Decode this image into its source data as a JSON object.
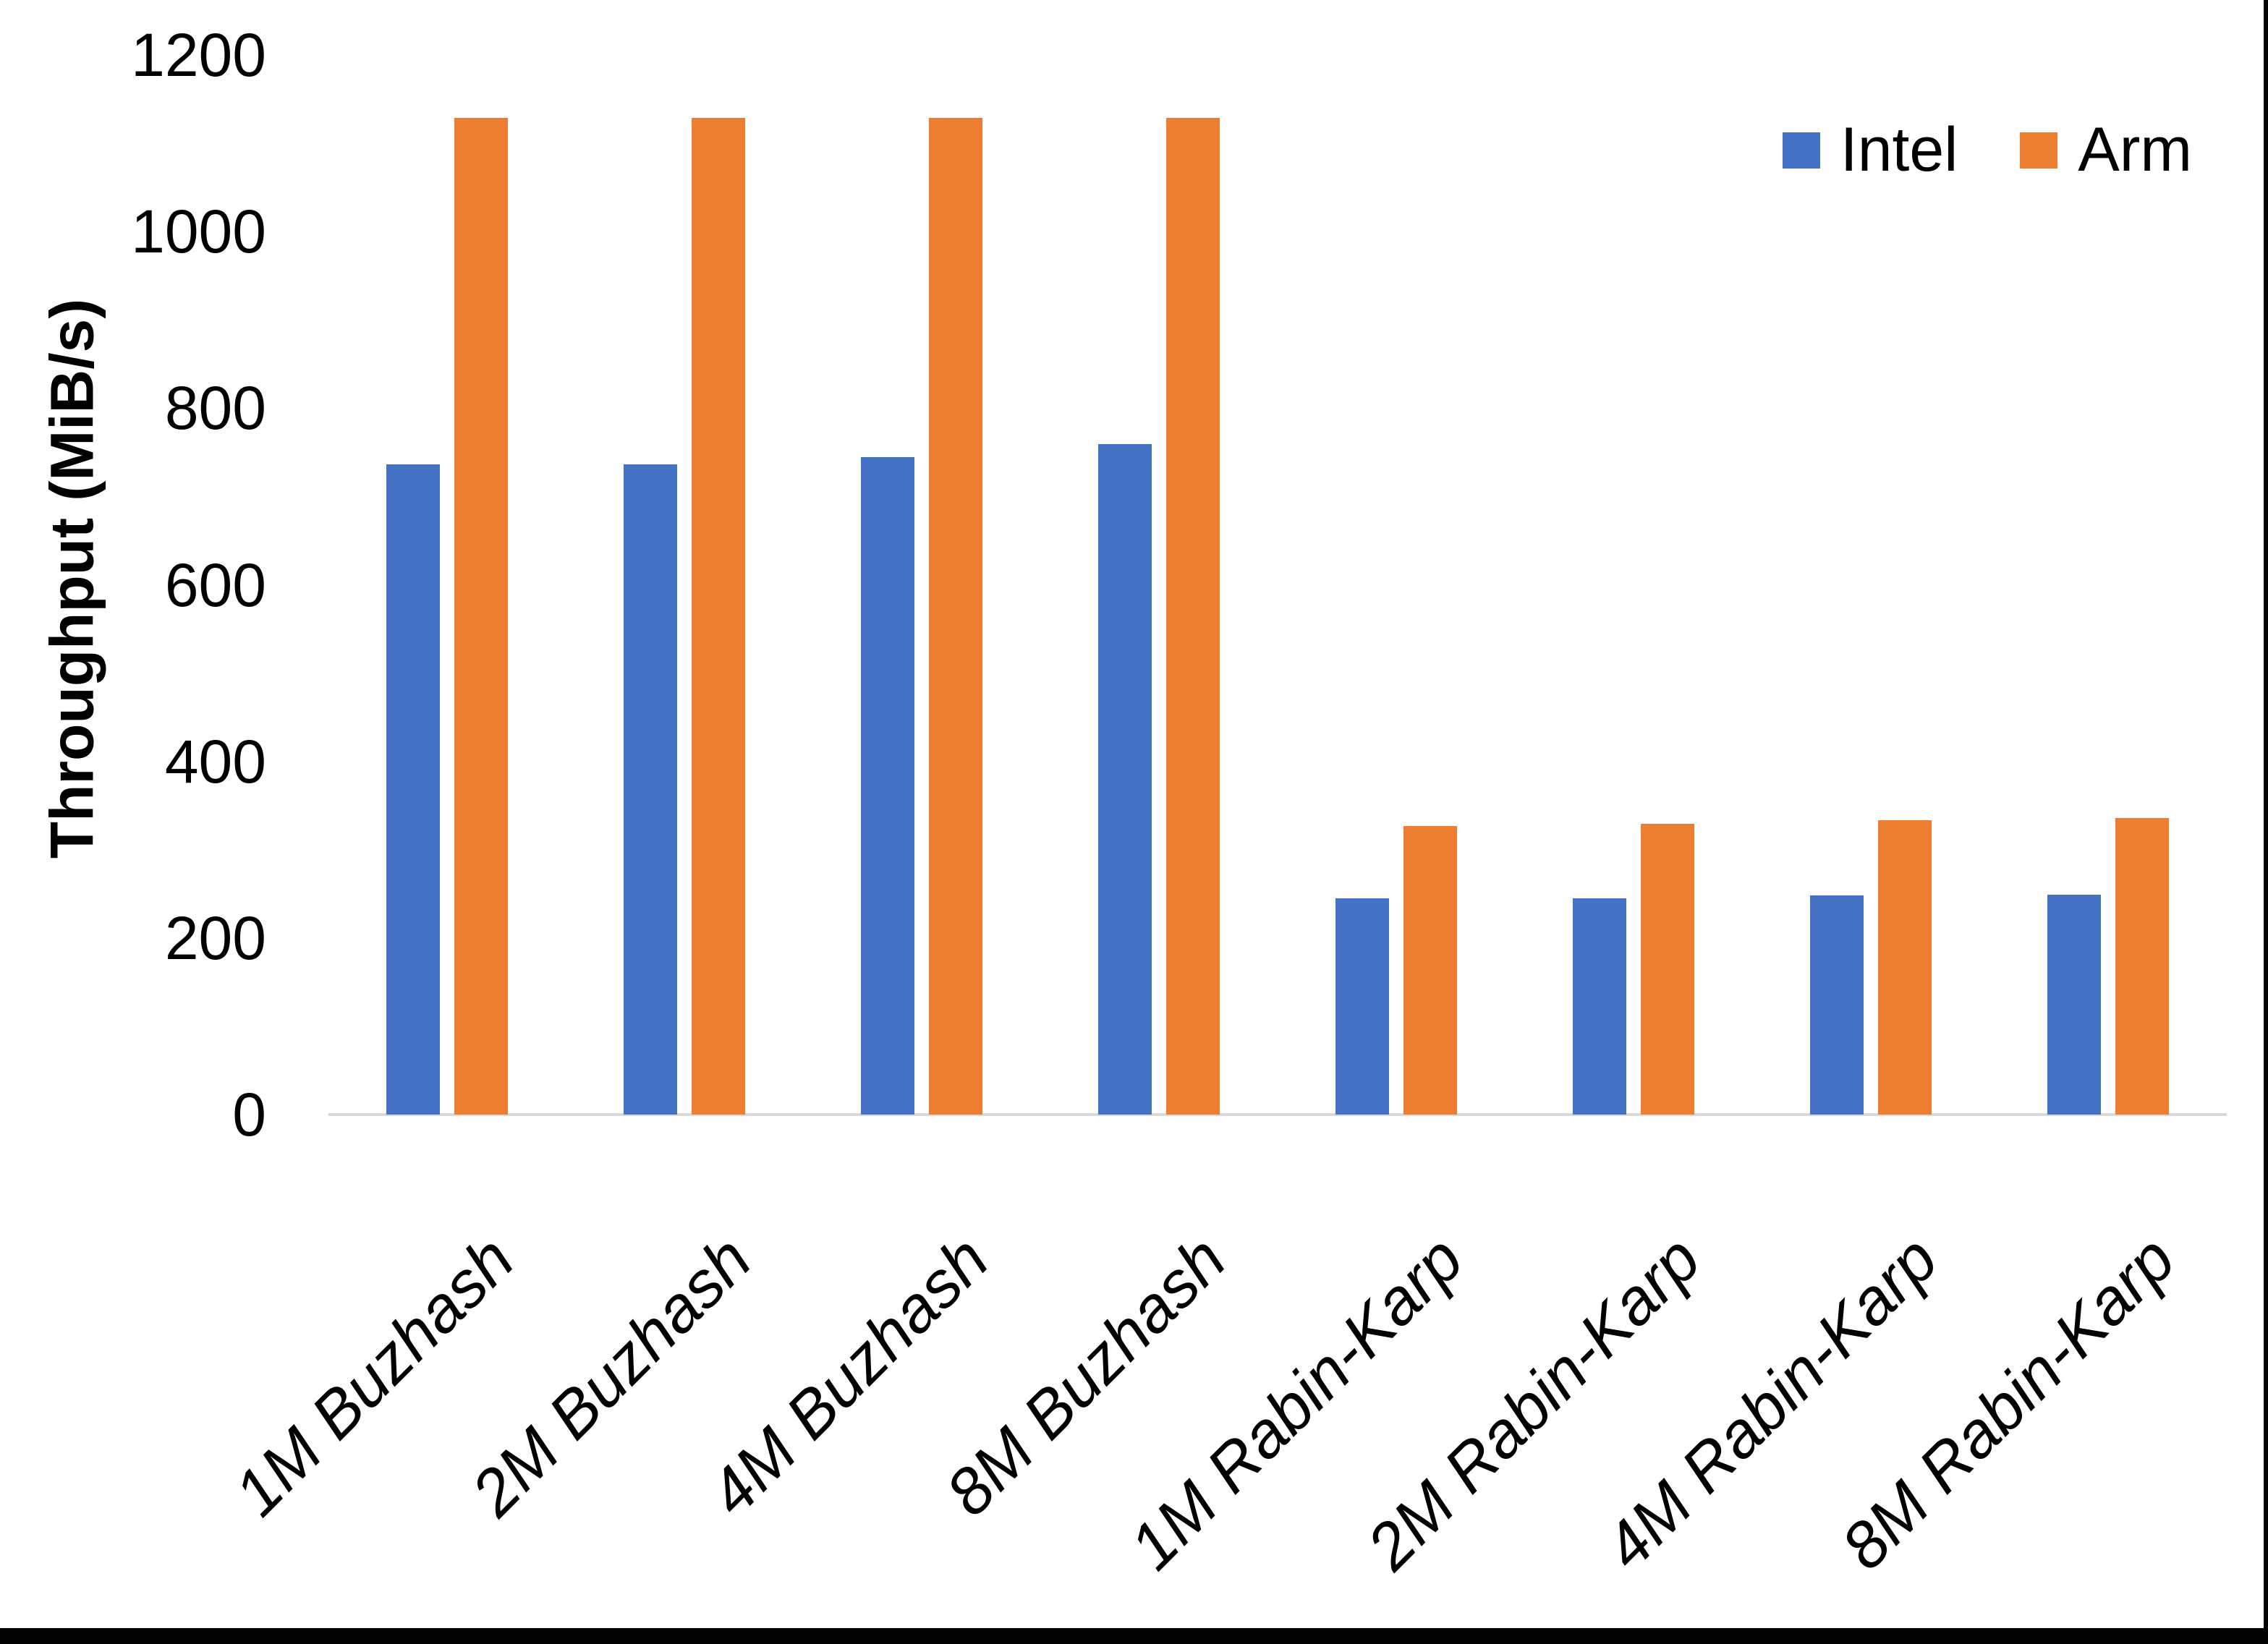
{
  "chart_data": {
    "type": "bar",
    "title": "",
    "categories": [
      "1M Buzhash",
      "2M Buzhash",
      "4M Buzhash",
      "8M Buzhash",
      "1M Rabin-Karp",
      "2M Rabin-Karp",
      "4M Rabin-Karp",
      "8M Rabin-Karp"
    ],
    "series": [
      {
        "name": "Intel",
        "color": "#4472C4",
        "values": [
          736,
          736,
          745,
          759,
          245,
          245,
          248,
          249
        ]
      },
      {
        "name": "Arm",
        "color": "#ED7D31",
        "values": [
          1129,
          1129,
          1129,
          1129,
          327,
          329,
          333,
          336
        ]
      }
    ],
    "xlabel": "",
    "ylabel": "Throughput (MiB/s)",
    "ylim": [
      0,
      1200
    ],
    "yticks": [
      0,
      200,
      400,
      600,
      800,
      1000,
      1200
    ],
    "grid": false,
    "legend_position": "top-right",
    "axis_line_color": "#D9D9D9",
    "text_color": "#000000",
    "background_color": "#FFFFFF",
    "border_color": "#000000"
  }
}
